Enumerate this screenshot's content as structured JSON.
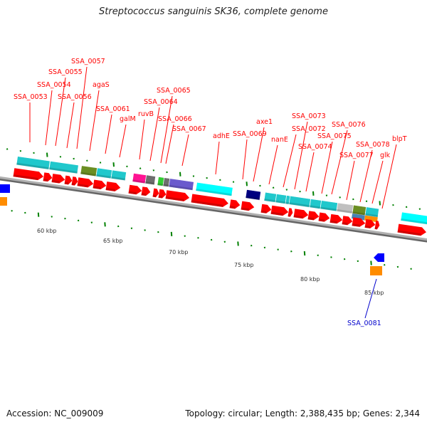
{
  "title": "Streptococcus sanguinis SK36, complete genome",
  "footer": {
    "accession": "Accession: NC_009009",
    "summary": "Topology: circular; Length: 2,388,435 bp; Genes: 2,344"
  },
  "colors": {
    "forward_cds": "#ff0000",
    "reverse_cds": "#0000ff",
    "backbone": "#aaaaaa",
    "tick": "#008000",
    "label_forward": "#ff0000",
    "label_reverse": "#0000cc"
  },
  "scale": {
    "unit": "kbp",
    "ticks": [
      {
        "label": "60 kbp",
        "kb": 60
      },
      {
        "label": "65 kbp",
        "kb": 65
      },
      {
        "label": "70 kbp",
        "kb": 70
      },
      {
        "label": "75 kbp",
        "kb": 75
      },
      {
        "label": "80 kbp",
        "kb": 80
      },
      {
        "label": "85 kbp",
        "kb": 85
      }
    ]
  },
  "gene_labels": [
    {
      "name": "SSA_0053",
      "strand": "+"
    },
    {
      "name": "SSA_0054",
      "strand": "+"
    },
    {
      "name": "SSA_0055",
      "strand": "+"
    },
    {
      "name": "SSA_0056",
      "strand": "+"
    },
    {
      "name": "SSA_0057",
      "strand": "+"
    },
    {
      "name": "agaS",
      "strand": "+"
    },
    {
      "name": "SSA_0061",
      "strand": "+"
    },
    {
      "name": "galM",
      "strand": "+"
    },
    {
      "name": "ruvB",
      "strand": "+"
    },
    {
      "name": "SSA_0064",
      "strand": "+"
    },
    {
      "name": "SSA_0065",
      "strand": "+"
    },
    {
      "name": "SSA_0066",
      "strand": "+"
    },
    {
      "name": "SSA_0067",
      "strand": "+"
    },
    {
      "name": "adhE",
      "strand": "+"
    },
    {
      "name": "SSA_0069",
      "strand": "+"
    },
    {
      "name": "axe1",
      "strand": "+"
    },
    {
      "name": "nanE",
      "strand": "+"
    },
    {
      "name": "SSA_0072",
      "strand": "+"
    },
    {
      "name": "SSA_0073",
      "strand": "+"
    },
    {
      "name": "SSA_0074",
      "strand": "+"
    },
    {
      "name": "SSA_0075",
      "strand": "+"
    },
    {
      "name": "SSA_0076",
      "strand": "+"
    },
    {
      "name": "SSA_0077",
      "strand": "+"
    },
    {
      "name": "SSA_0078",
      "strand": "+"
    },
    {
      "name": "glk",
      "strand": "+"
    },
    {
      "name": "blpT",
      "strand": "+"
    },
    {
      "name": "SSA_0081",
      "strand": "-"
    }
  ],
  "cog_colors": [
    "#20c8cc",
    "#6b8e23",
    "#ff1493",
    "#6e6e6e",
    "#33cc33",
    "#6a5acd",
    "#00ffff",
    "#000080",
    "#c0c0c0",
    "#4682b4",
    "#ff8c00"
  ]
}
